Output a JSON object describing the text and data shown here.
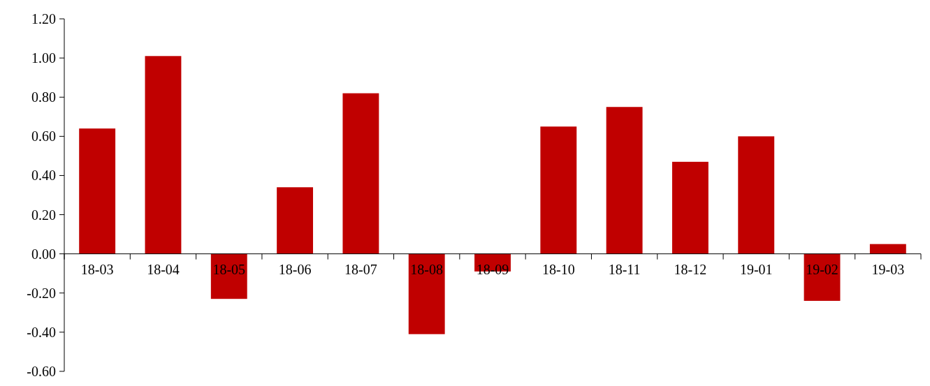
{
  "chart_data": {
    "type": "bar",
    "categories": [
      "18-03",
      "18-04",
      "18-05",
      "18-06",
      "18-07",
      "18-08",
      "18-09",
      "18-10",
      "18-11",
      "18-12",
      "19-01",
      "19-02",
      "19-03"
    ],
    "values": [
      0.64,
      1.01,
      -0.23,
      0.34,
      0.82,
      -0.41,
      -0.09,
      0.65,
      0.75,
      0.47,
      0.6,
      -0.24,
      0.05
    ],
    "color": "#c00000",
    "ylim": [
      -0.6,
      1.2
    ],
    "yticks": [
      {
        "value": -0.6,
        "label": "-0.60"
      },
      {
        "value": -0.4,
        "label": "-0.40"
      },
      {
        "value": -0.2,
        "label": "-0.20"
      },
      {
        "value": 0,
        "label": "0.00"
      },
      {
        "value": 0.2,
        "label": "0.20"
      },
      {
        "value": 0.4,
        "label": "0.40"
      },
      {
        "value": 0.6,
        "label": "0.60"
      },
      {
        "value": 0.8,
        "label": "0.80"
      },
      {
        "value": 1.0,
        "label": "1.00"
      },
      {
        "value": 1.2,
        "label": "1.20"
      }
    ],
    "grid": false
  }
}
